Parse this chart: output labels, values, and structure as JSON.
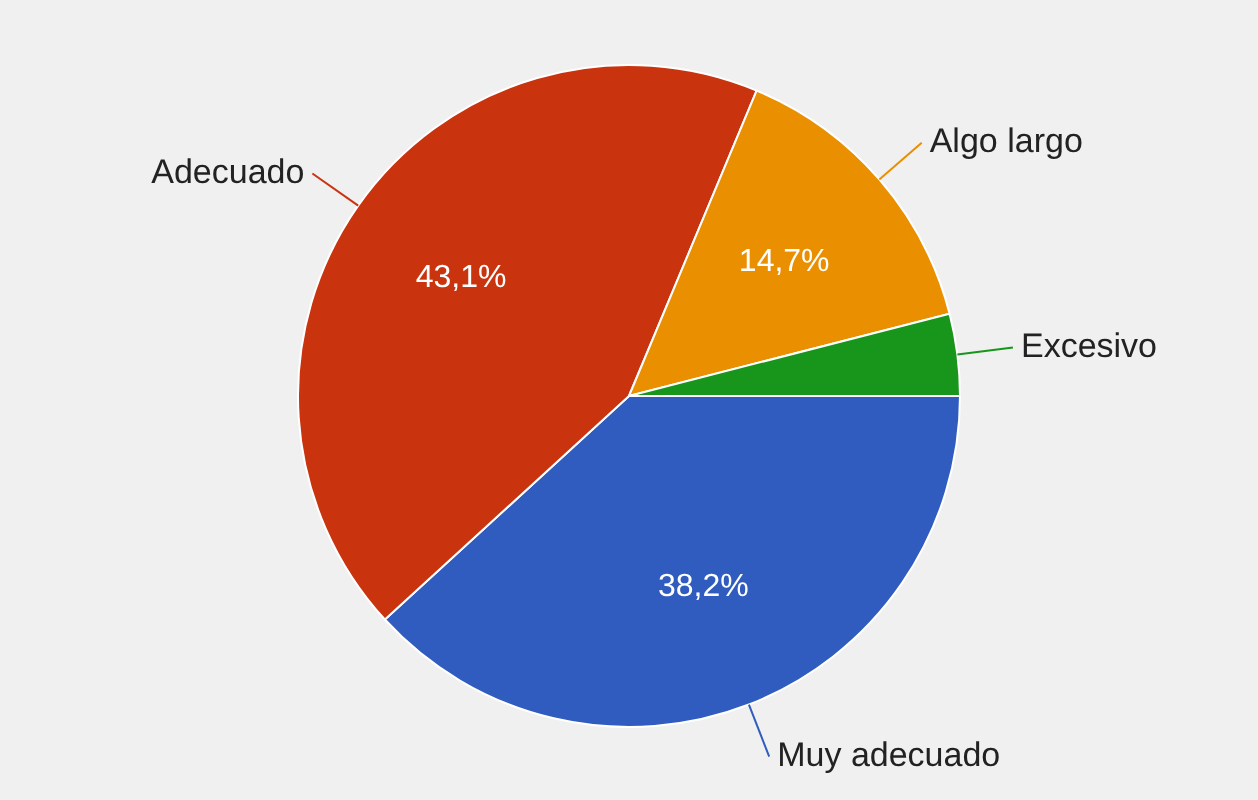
{
  "chart_data": {
    "type": "pie",
    "categories": [
      "Muy adecuado",
      "Adecuado",
      "Algo largo",
      "Excesivo"
    ],
    "values": [
      38.2,
      43.1,
      14.7,
      4.0
    ],
    "colors": [
      "#2f5cbe",
      "#c9340f",
      "#ea8f00",
      "#18961c"
    ],
    "value_labels": [
      "38,2%",
      "43,1%",
      "14,7%",
      null
    ],
    "legend": false
  }
}
